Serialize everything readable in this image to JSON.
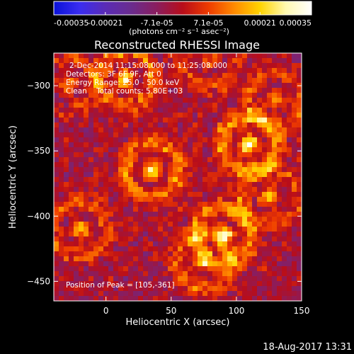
{
  "chart_data": {
    "type": "heatmap",
    "title": "Reconstructed RHESSI Image",
    "xlabel": "Heliocentric X (arcsec)",
    "ylabel": "Heliocentric Y (arcsec)",
    "xlim": [
      -40,
      150
    ],
    "ylim": [
      -465,
      -275
    ],
    "x_ticks": [
      0,
      50,
      100,
      150
    ],
    "y_ticks": [
      -300,
      -350,
      -400,
      -450
    ],
    "colorbar": {
      "range": [
        -0.00035,
        0.00035
      ],
      "tick_labels": [
        "-0.00035",
        "-0.00021",
        "-7.1e-05",
        "7.1e-05",
        "0.00021",
        "0.00035"
      ],
      "units": "(photons cm⁻² s⁻¹ asec⁻²)"
    },
    "annotations": [
      "2-Dec-2014 11:15:08.000 to 11:25:08.000",
      "Detectors: 3F 6F 9F, Att 0",
      "Energy Range: 25.0 - 50.0 keV",
      "Clean    Total counts: 5.80E+03",
      "Position of Peak = [105,-361]"
    ],
    "peak_position": [
      105,
      -361
    ],
    "hot_spots": [
      {
        "x": 15,
        "y": -295,
        "value": 0.0003
      },
      {
        "x": 35,
        "y": -365,
        "value": 0.00033
      },
      {
        "x": 110,
        "y": -345,
        "value": 0.00035
      },
      {
        "x": 90,
        "y": -415,
        "value": 0.0003
      },
      {
        "x": -20,
        "y": -410,
        "value": 0.00024
      },
      {
        "x": 80,
        "y": -280,
        "value": 0.00018
      },
      {
        "x": 125,
        "y": -385,
        "value": 0.0002
      },
      {
        "x": -30,
        "y": -300,
        "value": 0.00015
      },
      {
        "x": 75,
        "y": -435,
        "value": 0.00026
      },
      {
        "x": 130,
        "y": -310,
        "value": 0.0002
      }
    ],
    "colors": {
      "colormap": [
        "#0a12d8",
        "#3a2df0",
        "#5a2bb6",
        "#6a2c8e",
        "#8a1d5e",
        "#b80d1a",
        "#ee3b00",
        "#ff8a00",
        "#ffd400",
        "#fff9b0",
        "#ffffff"
      ]
    },
    "footer_timestamp": "18-Aug-2017 13:31"
  }
}
